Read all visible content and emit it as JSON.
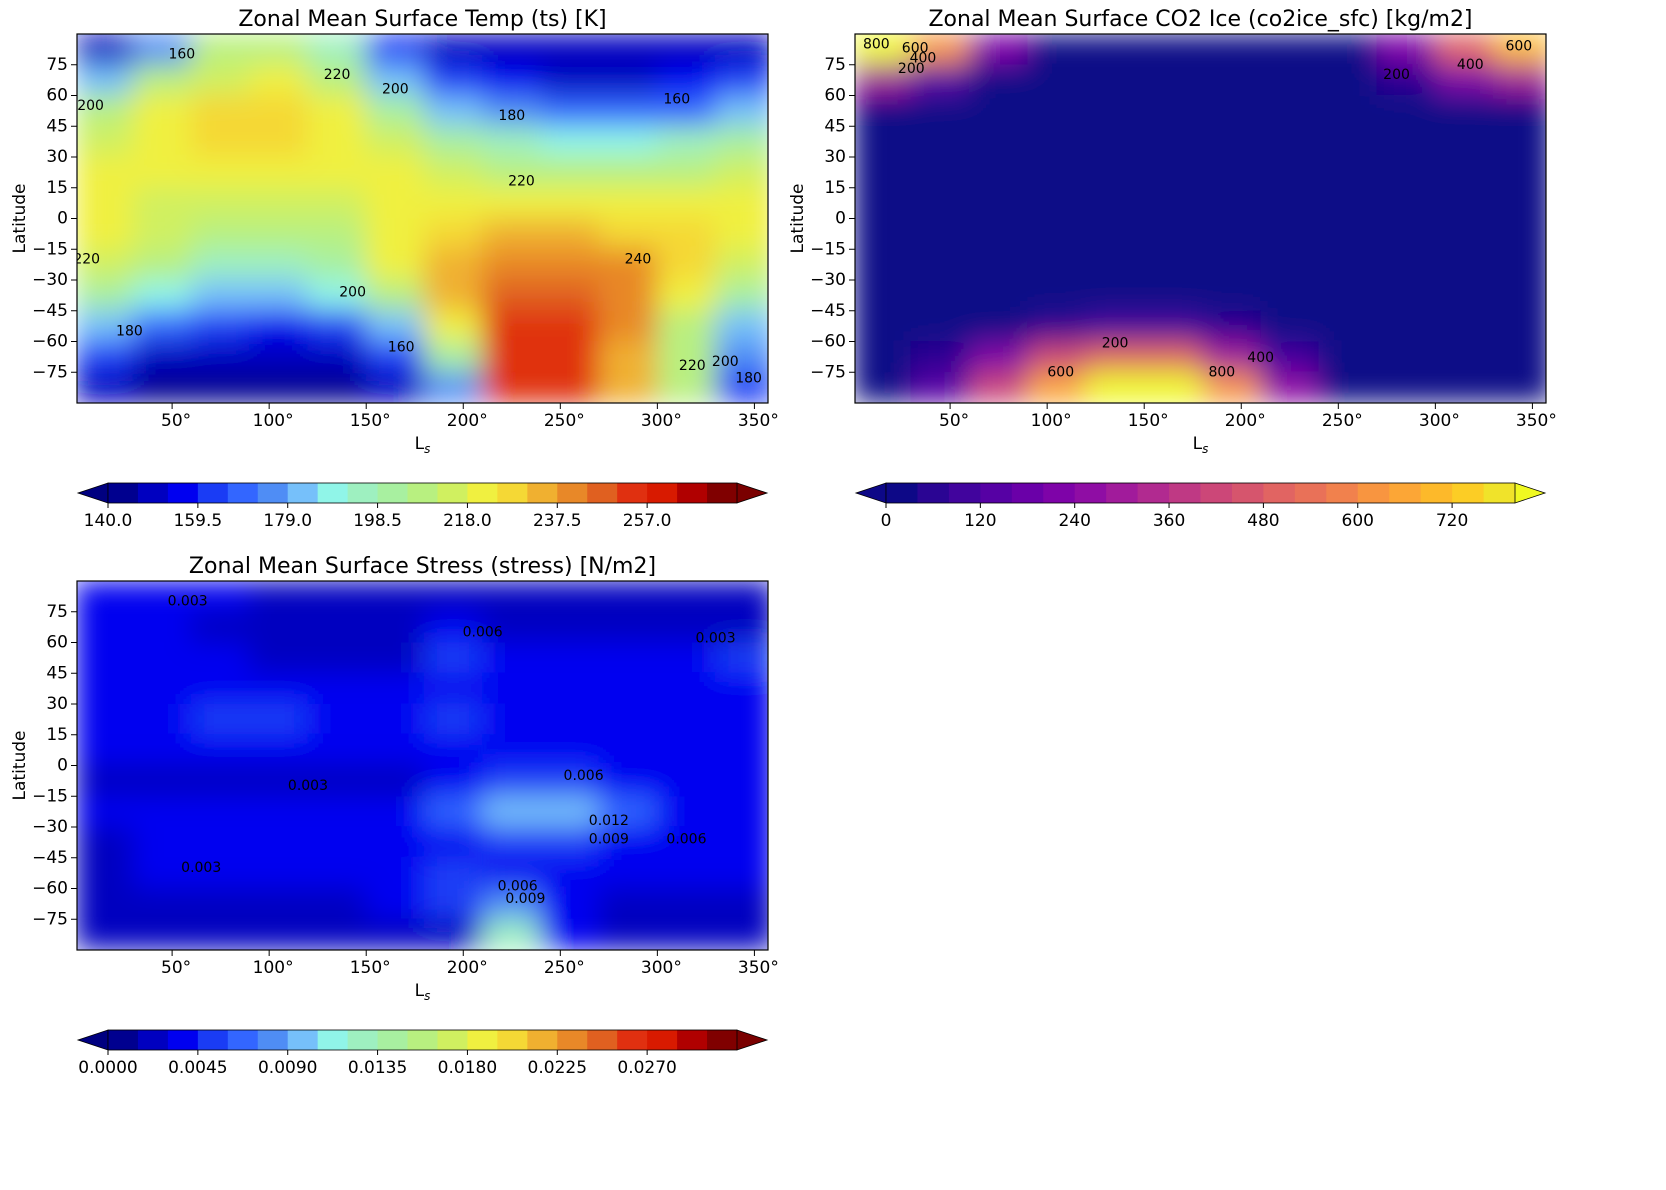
{
  "chart_data": [
    {
      "type": "contour",
      "title": "Zonal Mean Surface Temp (ts) [K]",
      "xlabel": "L",
      "xlabel_subscript": "s",
      "ylabel": "Latitude",
      "xlim": [
        1,
        357
      ],
      "ylim": [
        -90,
        90
      ],
      "xticks": [
        {
          "value": 50,
          "label": "50°"
        },
        {
          "value": 100,
          "label": "100°"
        },
        {
          "value": 150,
          "label": "150°"
        },
        {
          "value": 200,
          "label": "200°"
        },
        {
          "value": 250,
          "label": "250°"
        },
        {
          "value": 300,
          "label": "300°"
        },
        {
          "value": 350,
          "label": "350°"
        }
      ],
      "yticks": [
        {
          "value": -75,
          "label": "−75"
        },
        {
          "value": -60,
          "label": "−60"
        },
        {
          "value": -45,
          "label": "−45"
        },
        {
          "value": -30,
          "label": "−30"
        },
        {
          "value": -15,
          "label": "−15"
        },
        0,
        15,
        30,
        45,
        60,
        75
      ],
      "x": [
        15,
        45,
        75,
        105,
        135,
        165,
        195,
        225,
        255,
        285,
        315,
        345
      ],
      "y": [
        82.5,
        67.5,
        52.5,
        37.5,
        22.5,
        7.5,
        -7.5,
        -22.5,
        -37.5,
        -52.5,
        -67.5,
        -82.5
      ],
      "z": [
        [
          150,
          175,
          205,
          210,
          195,
          160,
          150,
          150,
          150,
          150,
          150,
          150
        ],
        [
          185,
          205,
          215,
          218,
          205,
          180,
          165,
          155,
          150,
          150,
          155,
          160
        ],
        [
          205,
          218,
          228,
          228,
          218,
          200,
          185,
          175,
          170,
          168,
          170,
          180
        ],
        [
          215,
          222,
          225,
          225,
          222,
          212,
          200,
          192,
          190,
          190,
          195,
          200
        ],
        [
          218,
          218,
          218,
          218,
          220,
          218,
          212,
          210,
          208,
          208,
          210,
          215
        ],
        [
          220,
          215,
          213,
          213,
          215,
          220,
          222,
          222,
          222,
          222,
          222,
          220
        ],
        [
          220,
          212,
          208,
          208,
          210,
          222,
          230,
          232,
          232,
          230,
          225,
          220
        ],
        [
          215,
          205,
          198,
          198,
          202,
          218,
          235,
          242,
          243,
          238,
          225,
          215
        ],
        [
          200,
          190,
          185,
          185,
          190,
          208,
          235,
          250,
          250,
          240,
          220,
          200
        ],
        [
          180,
          168,
          160,
          158,
          165,
          185,
          220,
          255,
          255,
          240,
          210,
          185
        ],
        [
          165,
          150,
          148,
          148,
          150,
          160,
          200,
          255,
          255,
          235,
          205,
          175
        ],
        [
          150,
          145,
          145,
          145,
          145,
          148,
          175,
          255,
          255,
          235,
          205,
          165
        ]
      ],
      "contour_labels": [
        {
          "text": 200,
          "x": 8,
          "y": 55
        },
        {
          "text": 160,
          "x": 55,
          "y": 80
        },
        {
          "text": 220,
          "x": 135,
          "y": 70
        },
        {
          "text": 200,
          "x": 165,
          "y": 63
        },
        {
          "text": 180,
          "x": 225,
          "y": 50
        },
        {
          "text": 160,
          "x": 310,
          "y": 58
        },
        {
          "text": 220,
          "x": 230,
          "y": 18
        },
        {
          "text": 220,
          "x": 6,
          "y": -20
        },
        {
          "text": 240,
          "x": 290,
          "y": -20
        },
        {
          "text": 200,
          "x": 143,
          "y": -36
        },
        {
          "text": 180,
          "x": 28,
          "y": -55
        },
        {
          "text": 160,
          "x": 168,
          "y": -63
        },
        {
          "text": 220,
          "x": 318,
          "y": -72
        },
        {
          "text": 200,
          "x": 335,
          "y": -70
        },
        {
          "text": 180,
          "x": 347,
          "y": -78
        }
      ],
      "colorbar": {
        "lim": [
          140,
          276.5
        ],
        "under_color": "#000080",
        "over_color": "#7a0000",
        "colors": [
          "#00008f",
          "#0000c0",
          "#0000f0",
          "#1a3cf5",
          "#3366ff",
          "#4f8df5",
          "#76c0fa",
          "#90f5e8",
          "#9ef0c0",
          "#a8f0a0",
          "#b8f080",
          "#d0f060",
          "#f0f040",
          "#f5d835",
          "#f0b030",
          "#e88828",
          "#e06020",
          "#e03010",
          "#d81a00",
          "#b00000",
          "#800000"
        ],
        "ticks": [
          {
            "value": 140,
            "label": "140.0"
          },
          {
            "value": 159.5,
            "label": "159.5"
          },
          {
            "value": 179,
            "label": "179.0"
          },
          {
            "value": 198.5,
            "label": "198.5"
          },
          {
            "value": 218,
            "label": "218.0"
          },
          {
            "value": 237.5,
            "label": "237.5"
          },
          {
            "value": 257,
            "label": "257.0"
          }
        ]
      }
    },
    {
      "type": "contour",
      "title": "Zonal Mean Surface CO2 Ice (co2ice_sfc) [kg/m2]",
      "xlabel": "L",
      "xlabel_subscript": "s",
      "ylabel": "Latitude",
      "xlim": [
        1,
        357
      ],
      "ylim": [
        -90,
        90
      ],
      "xticks": [
        {
          "value": 50,
          "label": "50°"
        },
        {
          "value": 100,
          "label": "100°"
        },
        {
          "value": 150,
          "label": "150°"
        },
        {
          "value": 200,
          "label": "200°"
        },
        {
          "value": 250,
          "label": "250°"
        },
        {
          "value": 300,
          "label": "300°"
        },
        {
          "value": 350,
          "label": "350°"
        }
      ],
      "yticks": [
        {
          "value": -75,
          "label": "−75"
        },
        {
          "value": -60,
          "label": "−60"
        },
        {
          "value": -45,
          "label": "−45"
        },
        {
          "value": -30,
          "label": "−30"
        },
        {
          "value": -15,
          "label": "−15"
        },
        0,
        15,
        30,
        45,
        60,
        75
      ],
      "x": [
        15,
        45,
        75,
        105,
        135,
        165,
        195,
        225,
        255,
        285,
        315,
        345
      ],
      "y": [
        82.5,
        67.5,
        52.5,
        37.5,
        22.5,
        7.5,
        -7.5,
        -22.5,
        -37.5,
        -52.5,
        -67.5,
        -82.5
      ],
      "z": [
        [
          800,
          600,
          200,
          20,
          0,
          0,
          0,
          0,
          0,
          200,
          500,
          700
        ],
        [
          300,
          150,
          20,
          0,
          0,
          0,
          0,
          0,
          0,
          50,
          200,
          300
        ],
        [
          30,
          0,
          0,
          0,
          0,
          0,
          0,
          0,
          0,
          0,
          0,
          10
        ],
        [
          0,
          0,
          0,
          0,
          0,
          0,
          0,
          0,
          0,
          0,
          0,
          0
        ],
        [
          0,
          0,
          0,
          0,
          0,
          0,
          0,
          0,
          0,
          0,
          0,
          0
        ],
        [
          0,
          0,
          0,
          0,
          0,
          0,
          0,
          0,
          0,
          0,
          0,
          0
        ],
        [
          0,
          0,
          0,
          0,
          0,
          0,
          0,
          0,
          0,
          0,
          0,
          0
        ],
        [
          0,
          0,
          0,
          0,
          0,
          0,
          0,
          0,
          0,
          0,
          0,
          0
        ],
        [
          0,
          0,
          0,
          0,
          0,
          0,
          0,
          0,
          0,
          0,
          0,
          0
        ],
        [
          0,
          0,
          20,
          60,
          80,
          80,
          40,
          10,
          0,
          0,
          0,
          0
        ],
        [
          0,
          50,
          200,
          400,
          500,
          500,
          300,
          100,
          0,
          0,
          0,
          0
        ],
        [
          0,
          120,
          400,
          650,
          800,
          820,
          600,
          250,
          20,
          0,
          0,
          0
        ]
      ],
      "contour_labels": [
        {
          "text": 800,
          "x": 12,
          "y": 85
        },
        {
          "text": 600,
          "x": 32,
          "y": 83
        },
        {
          "text": 400,
          "x": 36,
          "y": 78
        },
        {
          "text": 200,
          "x": 30,
          "y": 73
        },
        {
          "text": 200,
          "x": 280,
          "y": 70
        },
        {
          "text": 400,
          "x": 318,
          "y": 75
        },
        {
          "text": 600,
          "x": 343,
          "y": 84
        },
        {
          "text": 200,
          "x": 135,
          "y": -61
        },
        {
          "text": 600,
          "x": 107,
          "y": -75
        },
        {
          "text": 400,
          "x": 210,
          "y": -68
        },
        {
          "text": 800,
          "x": 190,
          "y": -75
        }
      ],
      "colorbar": {
        "lim": [
          0,
          800
        ],
        "under_color": "#0d0887",
        "over_color": "#f0f921",
        "colors": [
          "#0d0887",
          "#2a0593",
          "#41049d",
          "#5601a4",
          "#6a00a8",
          "#7e03a8",
          "#8f0da4",
          "#a11b9b",
          "#b12a90",
          "#bf3984",
          "#cc4778",
          "#d6556d",
          "#e16462",
          "#e97158",
          "#f1814d",
          "#f89540",
          "#fca636",
          "#fdb92a",
          "#fccd25",
          "#f0e32a"
        ],
        "ticks": [
          0,
          120,
          240,
          360,
          480,
          600,
          720
        ]
      }
    },
    {
      "type": "contour",
      "title": "Zonal Mean Surface Stress (stress) [N/m2]",
      "xlabel": "L",
      "xlabel_subscript": "s",
      "ylabel": "Latitude",
      "xlim": [
        1,
        357
      ],
      "ylim": [
        -90,
        90
      ],
      "xticks": [
        {
          "value": 50,
          "label": "50°"
        },
        {
          "value": 100,
          "label": "100°"
        },
        {
          "value": 150,
          "label": "150°"
        },
        {
          "value": 200,
          "label": "200°"
        },
        {
          "value": 250,
          "label": "250°"
        },
        {
          "value": 300,
          "label": "300°"
        },
        {
          "value": 350,
          "label": "350°"
        }
      ],
      "yticks": [
        {
          "value": -75,
          "label": "−75"
        },
        {
          "value": -60,
          "label": "−60"
        },
        {
          "value": -45,
          "label": "−45"
        },
        {
          "value": -30,
          "label": "−30"
        },
        {
          "value": -15,
          "label": "−15"
        },
        0,
        15,
        30,
        45,
        60,
        75
      ],
      "x": [
        15,
        45,
        75,
        105,
        135,
        165,
        195,
        225,
        255,
        285,
        315,
        345
      ],
      "y": [
        82.5,
        67.5,
        52.5,
        37.5,
        22.5,
        7.5,
        -7.5,
        -22.5,
        -37.5,
        -52.5,
        -67.5,
        -82.5
      ],
      "z": [
        [
          0.003,
          0.004,
          0.003,
          0.002,
          0.002,
          0.002,
          0.002,
          0.002,
          0.002,
          0.002,
          0.002,
          0.002
        ],
        [
          0.004,
          0.003,
          0.002,
          0.002,
          0.002,
          0.002,
          0.003,
          0.002,
          0.002,
          0.002,
          0.002,
          0.002
        ],
        [
          0.004,
          0.003,
          0.003,
          0.002,
          0.002,
          0.002,
          0.005,
          0.003,
          0.003,
          0.003,
          0.004,
          0.005
        ],
        [
          0.004,
          0.004,
          0.004,
          0.004,
          0.004,
          0.004,
          0.004,
          0.004,
          0.004,
          0.004,
          0.004,
          0.004
        ],
        [
          0.004,
          0.004,
          0.005,
          0.005,
          0.004,
          0.004,
          0.005,
          0.004,
          0.004,
          0.004,
          0.004,
          0.004
        ],
        [
          0.003,
          0.004,
          0.004,
          0.004,
          0.004,
          0.004,
          0.004,
          0.004,
          0.004,
          0.004,
          0.004,
          0.004
        ],
        [
          0.002,
          0.002,
          0.002,
          0.002,
          0.002,
          0.002,
          0.004,
          0.005,
          0.005,
          0.004,
          0.003,
          0.003
        ],
        [
          0.003,
          0.003,
          0.003,
          0.003,
          0.003,
          0.004,
          0.006,
          0.009,
          0.009,
          0.006,
          0.004,
          0.003
        ],
        [
          0.002,
          0.003,
          0.004,
          0.004,
          0.004,
          0.004,
          0.004,
          0.005,
          0.005,
          0.004,
          0.004,
          0.003
        ],
        [
          0.002,
          0.004,
          0.004,
          0.004,
          0.004,
          0.004,
          0.005,
          0.004,
          0.004,
          0.004,
          0.004,
          0.003
        ],
        [
          0.002,
          0.002,
          0.002,
          0.002,
          0.002,
          0.003,
          0.005,
          0.008,
          0.004,
          0.002,
          0.002,
          0.002
        ],
        [
          0.002,
          0.002,
          0.002,
          0.002,
          0.002,
          0.002,
          0.002,
          0.012,
          0.003,
          0.002,
          0.002,
          0.002
        ]
      ],
      "contour_labels": [
        {
          "text": 0.003,
          "x": 58,
          "y": 80
        },
        {
          "text": 0.006,
          "x": 210,
          "y": 65
        },
        {
          "text": 0.003,
          "x": 330,
          "y": 62
        },
        {
          "text": 0.003,
          "x": 120,
          "y": -10
        },
        {
          "text": 0.006,
          "x": 262,
          "y": -5
        },
        {
          "text": 0.012,
          "x": 275,
          "y": -27
        },
        {
          "text": 0.009,
          "x": 275,
          "y": -36
        },
        {
          "text": 0.006,
          "x": 315,
          "y": -36
        },
        {
          "text": 0.003,
          "x": 65,
          "y": -50
        },
        {
          "text": 0.006,
          "x": 228,
          "y": -59
        },
        {
          "text": 0.009,
          "x": 232,
          "y": -65
        }
      ],
      "colorbar": {
        "lim": [
          0,
          0.0315
        ],
        "under_color": "#000080",
        "over_color": "#7a0000",
        "colors": [
          "#00008f",
          "#0000c0",
          "#0000f0",
          "#1a3cf5",
          "#3366ff",
          "#4f8df5",
          "#76c0fa",
          "#90f5e8",
          "#9ef0c0",
          "#a8f0a0",
          "#b8f080",
          "#d0f060",
          "#f0f040",
          "#f5d835",
          "#f0b030",
          "#e88828",
          "#e06020",
          "#e03010",
          "#d81a00",
          "#b00000",
          "#800000"
        ],
        "ticks": [
          {
            "value": 0,
            "label": "0.0000"
          },
          {
            "value": 0.0045,
            "label": "0.0045"
          },
          {
            "value": 0.009,
            "label": "0.0090"
          },
          {
            "value": 0.0135,
            "label": "0.0135"
          },
          {
            "value": 0.018,
            "label": "0.0180"
          },
          {
            "value": 0.0225,
            "label": "0.0225"
          },
          {
            "value": 0.027,
            "label": "0.0270"
          }
        ]
      }
    }
  ]
}
